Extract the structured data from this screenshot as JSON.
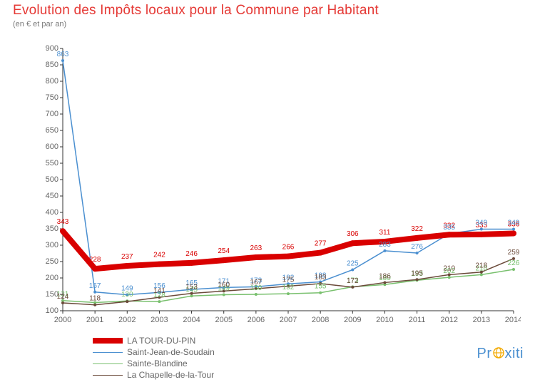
{
  "title": {
    "text": "Evolution des Impôts locaux pour la Commune par Habitant",
    "color": "#e53935",
    "fontsize": 19
  },
  "subtitle": {
    "text": "(en € et par an)",
    "color": "#7a7a7a",
    "fontsize": 11
  },
  "plot": {
    "type": "line",
    "background_color": "#ffffff",
    "axis_color": "#333333",
    "tick_label_color": "#666666",
    "xlim": [
      2000,
      2014
    ],
    "ylim": [
      100,
      900
    ],
    "xtick_step": 1,
    "ytick_step": 50,
    "label_fontsize": 10
  },
  "series": [
    {
      "name": "LA TOUR-DU-PIN",
      "color": "#d90000",
      "line_width": 8,
      "marker": "circle",
      "marker_size": 8,
      "labels_color": "#d90000",
      "x": [
        2000,
        2001,
        2002,
        2003,
        2004,
        2005,
        2006,
        2007,
        2008,
        2009,
        2010,
        2011,
        2012,
        2013,
        2014
      ],
      "y": [
        343,
        228,
        237,
        242,
        246,
        254,
        263,
        266,
        277,
        306,
        311,
        322,
        332,
        333,
        336
      ],
      "labels": [
        "343",
        "228",
        "237",
        "242",
        "246",
        "254",
        "263",
        "266",
        "277",
        "306",
        "311",
        "322",
        "332",
        "333",
        "336"
      ]
    },
    {
      "name": "Saint-Jean-de-Soudain",
      "color": "#4a8fd0",
      "line_width": 1.5,
      "marker": "circle",
      "marker_size": 4,
      "labels_color": "#4a8fd0",
      "x": [
        2000,
        2001,
        2002,
        2003,
        2004,
        2005,
        2006,
        2007,
        2008,
        2009,
        2010,
        2011,
        2012,
        2013,
        2014
      ],
      "y": [
        863,
        157,
        149,
        156,
        165,
        171,
        173,
        182,
        188,
        225,
        283,
        276,
        335,
        349,
        349
      ],
      "labels": [
        "863",
        "157",
        "149",
        "156",
        "165",
        "171",
        "173",
        "182",
        "188",
        "225",
        "283",
        "276",
        "335",
        "349",
        "349"
      ]
    },
    {
      "name": "Sainte-Blandine",
      "color": "#79c06e",
      "line_width": 1.5,
      "marker": "circle",
      "marker_size": 4,
      "labels_color": "#79c06e",
      "x": [
        2000,
        2001,
        2002,
        2003,
        2004,
        2005,
        2006,
        2007,
        2008,
        2009,
        2010,
        2011,
        2012,
        2013,
        2014
      ],
      "y": [
        131,
        125,
        130,
        128,
        145,
        149,
        150,
        152,
        155,
        173,
        180,
        193,
        202,
        210,
        226
      ],
      "labels": [
        "131",
        "",
        "130",
        "128",
        "145",
        "149",
        "150",
        "152",
        "155",
        "173",
        "180",
        "193",
        "202",
        "210",
        "226"
      ]
    },
    {
      "name": "La Chapelle-de-la-Tour",
      "color": "#6b4a3a",
      "line_width": 1.5,
      "marker": "circle",
      "marker_size": 4,
      "labels_color": "#6b4a3a",
      "x": [
        2000,
        2001,
        2002,
        2003,
        2004,
        2005,
        2006,
        2007,
        2008,
        2009,
        2010,
        2011,
        2012,
        2013,
        2014
      ],
      "y": [
        124,
        118,
        128,
        141,
        153,
        160,
        167,
        175,
        183,
        172,
        186,
        195,
        210,
        218,
        259
      ],
      "labels": [
        "124",
        "118",
        "",
        "141",
        "153",
        "160",
        "167",
        "175",
        "183",
        "172",
        "186",
        "195",
        "210",
        "218",
        "259"
      ]
    }
  ],
  "legend": {
    "position": "bottom-left",
    "fontsize": 12,
    "text_color": "#666666"
  },
  "watermark": {
    "text": "Proxiti",
    "pr_color": "#4a8fd0",
    "o_color": "#f2a900",
    "xiti_color": "#4a8fd0"
  }
}
